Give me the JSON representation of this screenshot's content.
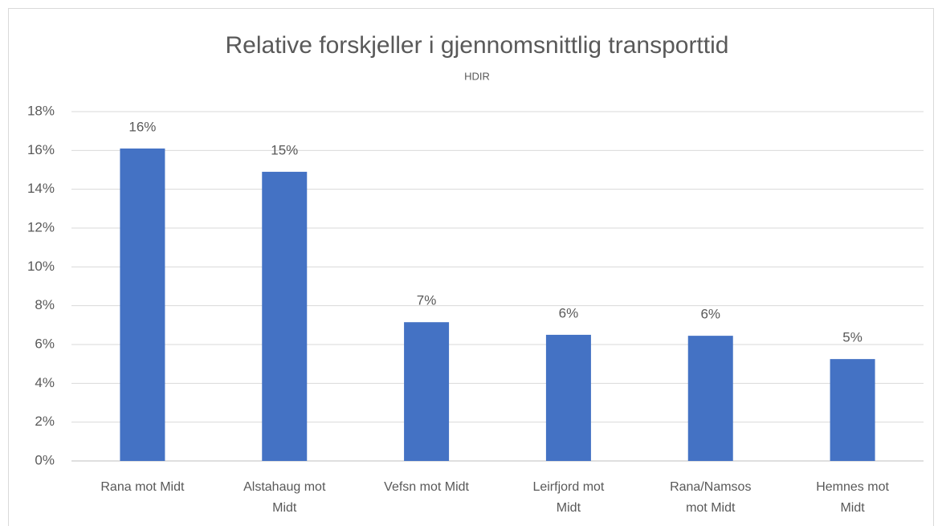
{
  "chart_data": {
    "type": "bar",
    "title": "Relative forskjeller i gjennomsnittlig transporttid",
    "subtitle": "HDIR",
    "categories": [
      "Rana mot Midt",
      "Alstahaug mot Midt",
      "Vefsn mot Midt",
      "Leirfjord mot Midt",
      "Rana/Namsos mot Midt",
      "Hemnes mot Midt"
    ],
    "values": [
      16.1,
      14.9,
      7.15,
      6.5,
      6.45,
      5.25
    ],
    "value_labels": [
      "16%",
      "15%",
      "7%",
      "6%",
      "6%",
      "5%"
    ],
    "color": "#4472c4",
    "ylim": [
      0,
      18
    ],
    "yticks": [
      {
        "value": 0,
        "label": "0%"
      },
      {
        "value": 2,
        "label": "2%"
      },
      {
        "value": 4,
        "label": "4%"
      },
      {
        "value": 6,
        "label": "6%"
      },
      {
        "value": 8,
        "label": "8%"
      },
      {
        "value": 10,
        "label": "10%"
      },
      {
        "value": 12,
        "label": "12%"
      },
      {
        "value": 14,
        "label": "14%"
      },
      {
        "value": 16,
        "label": "16%"
      },
      {
        "value": 18,
        "label": "18%"
      }
    ],
    "grid": true
  }
}
